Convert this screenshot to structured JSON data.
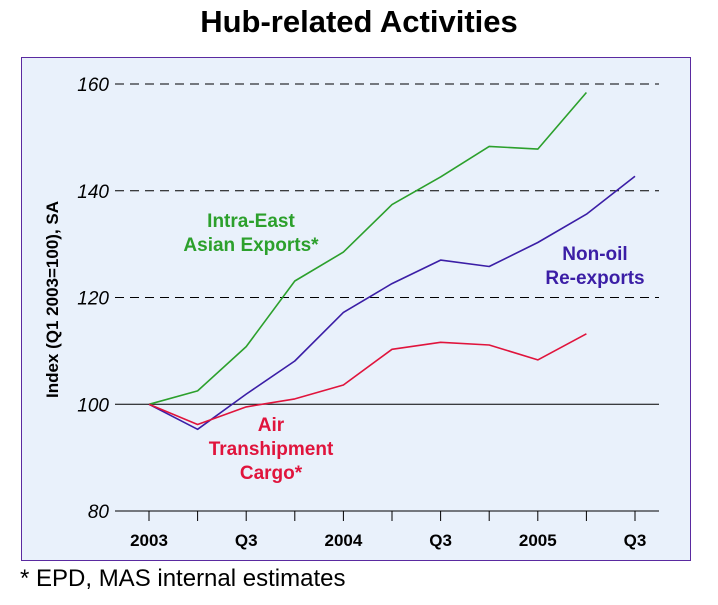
{
  "title": "Hub-related Activities",
  "footnote": "* EPD, MAS internal estimates",
  "chart_data": {
    "type": "line",
    "ylabel": "Index (Q1 2003=100), SA",
    "ylim": [
      80,
      160
    ],
    "yticks": [
      "80",
      "100",
      "120",
      "140",
      "160"
    ],
    "x_labels": [
      "2003",
      "",
      "Q3",
      "",
      "2004",
      "",
      "Q3",
      "",
      "2005",
      "",
      "Q3"
    ],
    "grid": "dashed horizontal at 120, 140, 160; solid line at 100",
    "series": [
      {
        "name": "Intra-East Asian Exports*",
        "color": "#2ca02c",
        "values": [
          100,
          102.5,
          110.8,
          123.1,
          128.5,
          137.4,
          142.6,
          148.3,
          147.8,
          158.4
        ]
      },
      {
        "name": "Non-oil Re-exports",
        "color": "#3b1ea6",
        "values": [
          100,
          95.3,
          101.9,
          108.1,
          117.2,
          122.6,
          127.0,
          125.8,
          130.3,
          135.6,
          142.7
        ]
      },
      {
        "name": "Air Transhipment Cargo*",
        "color": "#e0143c",
        "values": [
          100,
          96.2,
          99.5,
          101.0,
          103.6,
          110.3,
          111.6,
          111.1,
          108.3,
          113.2
        ]
      }
    ],
    "annotations": {
      "intra": [
        "Intra-East",
        "Asian Exports*"
      ],
      "nonoil": [
        "Non-oil",
        "Re-exports"
      ],
      "air": [
        "Air",
        "Transhipment",
        "Cargo*"
      ]
    }
  }
}
